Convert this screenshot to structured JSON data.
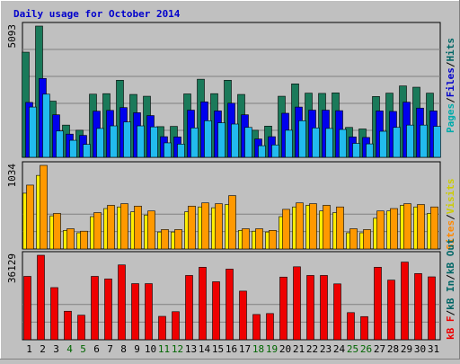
{
  "title": "Daily usage for October 2014",
  "colors": {
    "background": "#c0c0c0",
    "title": "#0000cc",
    "hits": "#006666",
    "files": "#0000cc",
    "pages": "#00aaaa",
    "visits": "#cccc00",
    "sites": "#ff8800",
    "kbin": "#006666",
    "kbout": "#006666",
    "kbf": "#ff0000",
    "hits_fill": "#1a7a5a",
    "files_fill": "#0000ee",
    "pages_fill": "#22bbee",
    "visits_fill": "#ffee00",
    "sites_fill": "#ff9900",
    "kb_fill": "#ee0000"
  },
  "chart_data": [
    {
      "type": "bar",
      "panel": "top",
      "ymax_label": "5093",
      "ylim": [
        0,
        5093
      ],
      "legend": [
        "Hits",
        "Files",
        "Pages"
      ],
      "categories": [
        "1",
        "2",
        "3",
        "4",
        "5",
        "6",
        "7",
        "8",
        "9",
        "10",
        "11",
        "12",
        "13",
        "14",
        "15",
        "16",
        "17",
        "18",
        "19",
        "20",
        "21",
        "22",
        "23",
        "24",
        "25",
        "26",
        "27",
        "28",
        "29",
        "30",
        "31"
      ],
      "weekend_days": [
        "4",
        "5",
        "11",
        "12",
        "18",
        "19",
        "25",
        "26"
      ],
      "series": [
        {
          "name": "Hits",
          "values": [
            4080,
            5093,
            2180,
            1250,
            1050,
            2450,
            2470,
            2990,
            2440,
            2370,
            1190,
            1200,
            2460,
            3030,
            2470,
            2990,
            2440,
            1050,
            1210,
            2370,
            2850,
            2490,
            2480,
            2500,
            1160,
            1100,
            2360,
            2490,
            2770,
            2720,
            2490
          ]
        },
        {
          "name": "Files",
          "values": [
            2130,
            3060,
            1650,
            900,
            850,
            1790,
            1820,
            1930,
            1730,
            1620,
            800,
            790,
            1830,
            2150,
            1800,
            2100,
            1650,
            710,
            800,
            1710,
            1950,
            1830,
            1830,
            1810,
            790,
            770,
            1800,
            1780,
            2140,
            1910,
            1800
          ]
        },
        {
          "name": "Pages",
          "values": [
            1950,
            2450,
            1020,
            660,
            500,
            1120,
            1220,
            1370,
            1220,
            1180,
            560,
            510,
            1140,
            1420,
            1340,
            1290,
            1160,
            450,
            480,
            1050,
            1420,
            1140,
            1120,
            1080,
            540,
            520,
            1010,
            1160,
            1250,
            1250,
            1200
          ]
        }
      ]
    },
    {
      "type": "bar",
      "panel": "middle",
      "ymax_label": "1034",
      "ylim": [
        0,
        1034
      ],
      "legend": [
        "Visits",
        "Sites"
      ],
      "categories": [
        "1",
        "2",
        "3",
        "4",
        "5",
        "6",
        "7",
        "8",
        "9",
        "10",
        "11",
        "12",
        "13",
        "14",
        "15",
        "16",
        "17",
        "18",
        "19",
        "20",
        "21",
        "22",
        "23",
        "24",
        "25",
        "26",
        "27",
        "28",
        "29",
        "30",
        "31"
      ],
      "series": [
        {
          "name": "Visits",
          "values": [
            690,
            910,
            410,
            230,
            200,
            400,
            500,
            520,
            460,
            420,
            210,
            210,
            460,
            520,
            510,
            550,
            230,
            220,
            210,
            400,
            520,
            540,
            470,
            450,
            200,
            200,
            380,
            470,
            540,
            520,
            440
          ]
        },
        {
          "name": "Sites",
          "values": [
            790,
            1034,
            440,
            250,
            220,
            450,
            540,
            560,
            530,
            470,
            240,
            240,
            530,
            570,
            560,
            660,
            250,
            250,
            230,
            490,
            570,
            560,
            540,
            520,
            250,
            240,
            470,
            500,
            560,
            550,
            520
          ]
        }
      ]
    },
    {
      "type": "bar",
      "panel": "bottom",
      "ymax_label": "36129",
      "ylim": [
        0,
        36129
      ],
      "legend": [
        "kB F",
        "kB In",
        "kB Out"
      ],
      "categories": [
        "1",
        "2",
        "3",
        "4",
        "5",
        "6",
        "7",
        "8",
        "9",
        "10",
        "11",
        "12",
        "13",
        "14",
        "15",
        "16",
        "17",
        "18",
        "19",
        "20",
        "21",
        "22",
        "23",
        "24",
        "25",
        "26",
        "27",
        "28",
        "29",
        "30",
        "31"
      ],
      "series": [
        {
          "name": "kB F",
          "values": [
            27100,
            36129,
            22300,
            12200,
            10500,
            27100,
            26000,
            32000,
            24000,
            24000,
            10000,
            12000,
            27500,
            31000,
            24800,
            30200,
            20800,
            10800,
            11200,
            26800,
            31200,
            27500,
            27500,
            23900,
            11600,
            9900,
            31000,
            25500,
            33200,
            28300,
            26900
          ]
        }
      ]
    }
  ]
}
